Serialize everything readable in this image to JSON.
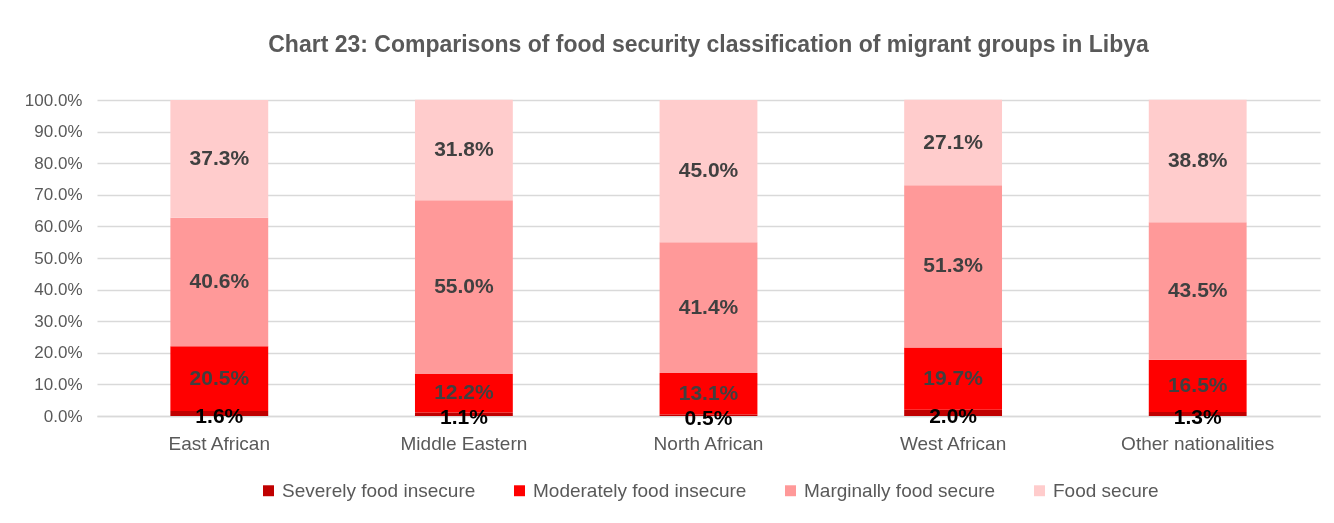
{
  "chart_data": {
    "type": "bar",
    "stacked": true,
    "title": "Chart 23: Comparisons of food security classification of migrant groups in Libya",
    "categories": [
      "East African",
      "Middle Eastern",
      "North African",
      "West African",
      "Other nationalities"
    ],
    "series": [
      {
        "name": "Severely food insecure",
        "color": "#c00000",
        "values": [
          1.6,
          1.1,
          0.5,
          2.0,
          1.3
        ],
        "value_labels": [
          "1.6%",
          "1.1%",
          "0.5%",
          "2.0%",
          "1.3%"
        ]
      },
      {
        "name": "Moderately food insecure",
        "color": "#ff0000",
        "values": [
          20.5,
          12.2,
          13.1,
          19.7,
          16.5
        ],
        "value_labels": [
          "20.5%",
          "12.2%",
          "13.1%",
          "19.7%",
          "16.5%"
        ]
      },
      {
        "name": "Marginally food secure",
        "color": "#ff9999",
        "values": [
          40.6,
          55.0,
          41.4,
          51.3,
          43.5
        ],
        "value_labels": [
          "40.6%",
          "55.0%",
          "41.4%",
          "51.3%",
          "43.5%"
        ]
      },
      {
        "name": "Food secure",
        "color": "#ffcccc",
        "values": [
          37.3,
          31.8,
          45.0,
          27.1,
          38.8
        ],
        "value_labels": [
          "37.3%",
          "31.8%",
          "45.0%",
          "27.1%",
          "38.8%"
        ]
      }
    ],
    "ylim": [
      0,
      100
    ],
    "yticks": [
      {
        "value": 0,
        "label": "0.0%"
      },
      {
        "value": 10,
        "label": "10.0%"
      },
      {
        "value": 20,
        "label": "20.0%"
      },
      {
        "value": 30,
        "label": "30.0%"
      },
      {
        "value": 40,
        "label": "40.0%"
      },
      {
        "value": 50,
        "label": "50.0%"
      },
      {
        "value": 60,
        "label": "60.0%"
      },
      {
        "value": 70,
        "label": "70.0%"
      },
      {
        "value": 80,
        "label": "80.0%"
      },
      {
        "value": 90,
        "label": "90.0%"
      },
      {
        "value": 100,
        "label": "100.0%"
      }
    ],
    "grid": "y",
    "legend": "bottom"
  }
}
